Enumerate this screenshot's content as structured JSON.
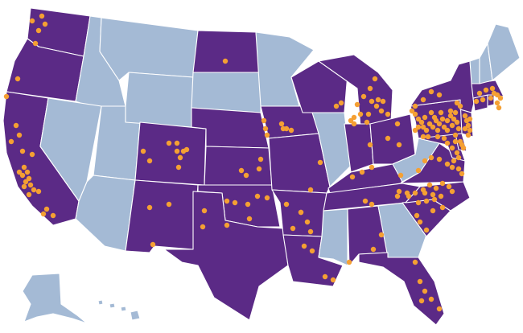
{
  "colors": {
    "highlighted_state": "#5b2a86",
    "other_state": "#a4bad5",
    "dot": "#f5a033",
    "border": "#ffffff"
  },
  "legend_meaning": {},
  "map": {
    "states": [
      {
        "name": "washington",
        "highlighted": true
      },
      {
        "name": "oregon",
        "highlighted": true
      },
      {
        "name": "california",
        "highlighted": true
      },
      {
        "name": "idaho",
        "highlighted": false
      },
      {
        "name": "nevada",
        "highlighted": false
      },
      {
        "name": "utah",
        "highlighted": false
      },
      {
        "name": "arizona",
        "highlighted": false
      },
      {
        "name": "montana",
        "highlighted": false
      },
      {
        "name": "wyoming",
        "highlighted": false
      },
      {
        "name": "colorado",
        "highlighted": true
      },
      {
        "name": "new-mexico",
        "highlighted": true
      },
      {
        "name": "north-dakota",
        "highlighted": true
      },
      {
        "name": "south-dakota",
        "highlighted": false
      },
      {
        "name": "nebraska",
        "highlighted": true
      },
      {
        "name": "kansas",
        "highlighted": true
      },
      {
        "name": "oklahoma",
        "highlighted": true
      },
      {
        "name": "texas",
        "highlighted": true
      },
      {
        "name": "minnesota",
        "highlighted": false
      },
      {
        "name": "iowa",
        "highlighted": true
      },
      {
        "name": "missouri",
        "highlighted": true
      },
      {
        "name": "arkansas",
        "highlighted": true
      },
      {
        "name": "louisiana",
        "highlighted": true
      },
      {
        "name": "wisconsin",
        "highlighted": true
      },
      {
        "name": "illinois",
        "highlighted": false
      },
      {
        "name": "michigan",
        "highlighted": true
      },
      {
        "name": "indiana",
        "highlighted": true
      },
      {
        "name": "ohio",
        "highlighted": true
      },
      {
        "name": "kentucky",
        "highlighted": true
      },
      {
        "name": "tennessee",
        "highlighted": true
      },
      {
        "name": "mississippi",
        "highlighted": false
      },
      {
        "name": "alabama",
        "highlighted": true
      },
      {
        "name": "georgia",
        "highlighted": false
      },
      {
        "name": "florida",
        "highlighted": true
      },
      {
        "name": "south-carolina",
        "highlighted": true
      },
      {
        "name": "north-carolina",
        "highlighted": true
      },
      {
        "name": "virginia",
        "highlighted": true
      },
      {
        "name": "west-virginia",
        "highlighted": false
      },
      {
        "name": "maryland",
        "highlighted": true
      },
      {
        "name": "delaware",
        "highlighted": true
      },
      {
        "name": "new-jersey",
        "highlighted": true
      },
      {
        "name": "pennsylvania",
        "highlighted": true
      },
      {
        "name": "new-york",
        "highlighted": true
      },
      {
        "name": "connecticut",
        "highlighted": true
      },
      {
        "name": "rhode-island",
        "highlighted": true
      },
      {
        "name": "massachusetts",
        "highlighted": true
      },
      {
        "name": "vermont",
        "highlighted": false
      },
      {
        "name": "new-hampshire",
        "highlighted": false
      },
      {
        "name": "maine",
        "highlighted": false
      },
      {
        "name": "alaska",
        "highlighted": false
      },
      {
        "name": "hawaii",
        "highlighted": false
      }
    ],
    "location_counts": {
      "washington": 5,
      "oregon": 1,
      "california": 20,
      "colorado": 9,
      "new-mexico": 4,
      "north-dakota": 1,
      "nebraska": 3,
      "kansas": 4,
      "oklahoma": 7,
      "texas": 6,
      "iowa": 4,
      "missouri": 1,
      "arkansas": 3,
      "louisiana": 3,
      "wisconsin": 2,
      "michigan": 16,
      "indiana": 4,
      "ohio": 3,
      "kentucky": 2,
      "tennessee": 6,
      "alabama": 3,
      "florida": 6,
      "south-carolina": 5,
      "north-carolina": 12,
      "virginia": 9,
      "maryland": 6,
      "delaware": 3,
      "new-jersey": 7,
      "pennsylvania": 33,
      "new-york": 5,
      "connecticut": 2,
      "rhode-island": 1,
      "massachusetts": 8
    }
  }
}
